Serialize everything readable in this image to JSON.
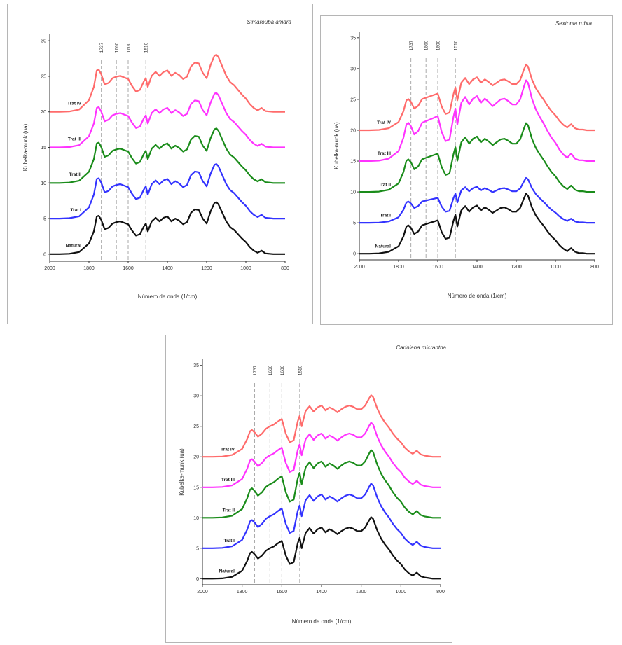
{
  "chart_data": [
    {
      "type": "line",
      "title": "Simarouba amara",
      "xlabel": "Número de onda (1/cm)",
      "ylabel": "Kubelka-munk (ua)",
      "xlim": [
        2000,
        800
      ],
      "ylim": [
        -1,
        31
      ],
      "xticks": [
        2000,
        1800,
        1600,
        1400,
        1200,
        1000,
        800
      ],
      "yticks": [
        0,
        5,
        10,
        15,
        20,
        25,
        30
      ],
      "markers": [
        1737,
        1660,
        1600,
        1510
      ],
      "series": [
        {
          "name": "Natural",
          "color": "#111111",
          "offset": 0
        },
        {
          "name": "Trat I",
          "color": "#3333ff",
          "offset": 5
        },
        {
          "name": "Trat II",
          "color": "#1a8c1a",
          "offset": 10
        },
        {
          "name": "Trat III",
          "color": "#ff33ff",
          "offset": 15
        },
        {
          "name": "Trat IV",
          "color": "#ff6b6b",
          "offset": 20
        }
      ],
      "x": [
        2000,
        1950,
        1900,
        1850,
        1800,
        1775,
        1760,
        1750,
        1737,
        1720,
        1700,
        1680,
        1660,
        1640,
        1620,
        1600,
        1580,
        1560,
        1540,
        1520,
        1510,
        1500,
        1480,
        1460,
        1440,
        1420,
        1400,
        1380,
        1360,
        1340,
        1320,
        1300,
        1280,
        1260,
        1240,
        1220,
        1200,
        1180,
        1160,
        1150,
        1140,
        1120,
        1100,
        1080,
        1060,
        1040,
        1020,
        1000,
        980,
        960,
        940,
        920,
        900,
        880,
        860,
        840,
        820,
        800
      ],
      "shape": [
        0,
        0,
        0.05,
        0.3,
        1.5,
        3.2,
        5.3,
        5.4,
        4.8,
        3.5,
        3.7,
        4.3,
        4.5,
        4.6,
        4.4,
        4.2,
        3.3,
        2.6,
        2.8,
        3.9,
        4.3,
        3.2,
        4.6,
        5.1,
        4.6,
        5.1,
        5.3,
        4.6,
        5.0,
        4.7,
        4.2,
        4.5,
        5.8,
        6.3,
        6.2,
        5.0,
        4.3,
        6.0,
        7.2,
        7.3,
        7.0,
        5.8,
        4.6,
        3.8,
        3.4,
        2.8,
        2.2,
        1.7,
        1.0,
        0.5,
        0.2,
        0.5,
        0.1,
        0.05,
        0.0,
        0.0,
        0.0,
        0.0
      ],
      "series_scale": [
        1.0,
        1.05,
        1.05,
        1.05,
        1.1
      ]
    },
    {
      "type": "line",
      "title": "Sextonia rubra",
      "xlabel": "Número de onda (1/cm)",
      "ylabel": "Kubelka-munk (ua)",
      "xlim": [
        2000,
        800
      ],
      "ylim": [
        -1,
        36
      ],
      "xticks": [
        2000,
        1800,
        1600,
        1400,
        1200,
        1000,
        800
      ],
      "yticks": [
        0,
        5,
        10,
        15,
        20,
        25,
        30,
        35
      ],
      "markers": [
        1737,
        1660,
        1600,
        1510
      ],
      "series": [
        {
          "name": "Natural",
          "color": "#111111",
          "offset": 0
        },
        {
          "name": "Trat I",
          "color": "#3333ff",
          "offset": 5
        },
        {
          "name": "Trat II",
          "color": "#1a8c1a",
          "offset": 10
        },
        {
          "name": "Trat III",
          "color": "#ff33ff",
          "offset": 15
        },
        {
          "name": "Trat IV",
          "color": "#ff6b6b",
          "offset": 20
        }
      ],
      "x": [
        2000,
        1950,
        1900,
        1850,
        1800,
        1775,
        1760,
        1750,
        1737,
        1720,
        1700,
        1680,
        1660,
        1640,
        1620,
        1600,
        1580,
        1560,
        1540,
        1520,
        1510,
        1500,
        1480,
        1460,
        1440,
        1420,
        1400,
        1380,
        1360,
        1340,
        1320,
        1300,
        1280,
        1260,
        1240,
        1220,
        1200,
        1180,
        1160,
        1150,
        1140,
        1120,
        1100,
        1080,
        1060,
        1040,
        1020,
        1000,
        980,
        960,
        940,
        920,
        900,
        880,
        860,
        840,
        820,
        800
      ],
      "shape": [
        0,
        0,
        0.05,
        0.3,
        1.2,
        2.8,
        4.4,
        4.6,
        4.2,
        3.2,
        3.6,
        4.6,
        4.8,
        5.0,
        5.2,
        5.4,
        3.5,
        2.4,
        2.6,
        5.3,
        6.3,
        4.4,
        7.0,
        7.7,
        6.8,
        7.5,
        7.8,
        7.0,
        7.5,
        7.1,
        6.6,
        7.0,
        7.4,
        7.5,
        7.2,
        6.8,
        6.8,
        7.4,
        9.0,
        9.7,
        9.4,
        7.5,
        6.2,
        5.3,
        4.5,
        3.6,
        2.8,
        2.2,
        1.4,
        0.8,
        0.4,
        0.9,
        0.3,
        0.1,
        0.1,
        0.0,
        0.0,
        0.0
      ],
      "series_scale": [
        1.0,
        0.75,
        1.15,
        1.35,
        1.1
      ]
    },
    {
      "type": "line",
      "title": "Cariniana micrantha",
      "xlabel": "Número de onda (1/cm)",
      "ylabel": "Kubelka-munk (ua)",
      "xlim": [
        2000,
        800
      ],
      "ylim": [
        -1,
        36
      ],
      "xticks": [
        2000,
        1800,
        1600,
        1400,
        1200,
        1000,
        800
      ],
      "yticks": [
        0,
        5,
        10,
        15,
        20,
        25,
        30,
        35
      ],
      "markers": [
        1737,
        1660,
        1600,
        1510
      ],
      "series": [
        {
          "name": "Natural",
          "color": "#111111",
          "offset": 0
        },
        {
          "name": "Trat I",
          "color": "#3333ff",
          "offset": 5
        },
        {
          "name": "Trat II",
          "color": "#1a8c1a",
          "offset": 10
        },
        {
          "name": "Trat III",
          "color": "#ff33ff",
          "offset": 15
        },
        {
          "name": "Trat IV",
          "color": "#ff6b6b",
          "offset": 20
        }
      ],
      "x": [
        2000,
        1950,
        1900,
        1850,
        1800,
        1775,
        1760,
        1750,
        1737,
        1720,
        1700,
        1680,
        1660,
        1640,
        1620,
        1600,
        1580,
        1560,
        1540,
        1520,
        1510,
        1500,
        1480,
        1460,
        1440,
        1420,
        1400,
        1380,
        1360,
        1340,
        1320,
        1300,
        1280,
        1260,
        1240,
        1220,
        1200,
        1180,
        1160,
        1150,
        1140,
        1120,
        1100,
        1080,
        1060,
        1040,
        1020,
        1000,
        980,
        960,
        940,
        920,
        900,
        880,
        860,
        840,
        820,
        800
      ],
      "shape": [
        0,
        0,
        0.05,
        0.3,
        1.3,
        2.9,
        4.2,
        4.4,
        4.0,
        3.3,
        3.8,
        4.6,
        5.0,
        5.3,
        5.8,
        6.2,
        3.8,
        2.4,
        2.7,
        5.8,
        6.7,
        5.0,
        7.5,
        8.3,
        7.4,
        8.1,
        8.4,
        7.6,
        8.1,
        7.8,
        7.3,
        7.8,
        8.2,
        8.4,
        8.2,
        7.8,
        7.8,
        8.4,
        9.6,
        10.1,
        9.8,
        8.0,
        6.6,
        5.6,
        4.8,
        3.8,
        3.0,
        2.4,
        1.5,
        0.9,
        0.5,
        1.0,
        0.4,
        0.2,
        0.1,
        0.0,
        0.0,
        0.0
      ],
      "series_scale": [
        1.0,
        1.05,
        1.1,
        1.05,
        1.0
      ]
    }
  ]
}
